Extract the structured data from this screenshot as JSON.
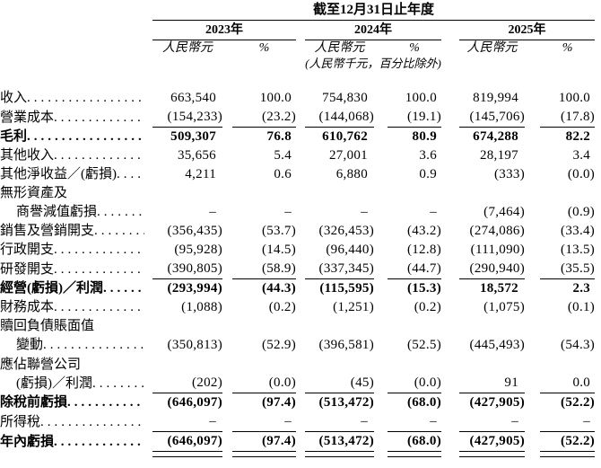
{
  "colors": {
    "text": "#000000",
    "rule": "#000000",
    "background": "#ffffff"
  },
  "header": {
    "period_title": "截至12月31日止年度",
    "years": [
      "2023年",
      "2024年",
      "2025年"
    ],
    "unit_label": "人民幣元",
    "percent_symbol": "%",
    "units_note": "(人民幣千元，百分比除外)"
  },
  "table": {
    "column_names": [
      "amount-2023",
      "percent-2023",
      "amount-2024",
      "percent-2024",
      "amount-2025",
      "percent-2025"
    ],
    "rows": [
      {
        "label": "收入",
        "bold": false,
        "values": [
          "663,540",
          "100.0",
          "754,830",
          "100.0",
          "819,994",
          "100.0"
        ]
      },
      {
        "label": "營業成本",
        "bold": false,
        "rule_below": true,
        "values": [
          "(154,233)",
          "(23.2)",
          "(144,068)",
          "(19.1)",
          "(145,706)",
          "(17.8)"
        ]
      },
      {
        "label": "毛利",
        "bold": true,
        "values": [
          "509,307",
          "76.8",
          "610,762",
          "80.9",
          "674,288",
          "82.2"
        ]
      },
      {
        "label": "其他收入",
        "bold": false,
        "values": [
          "35,656",
          "5.4",
          "27,001",
          "3.6",
          "28,197",
          "3.4"
        ]
      },
      {
        "label": "其他淨收益／(虧損)",
        "bold": false,
        "values": [
          "4,211",
          "0.6",
          "6,880",
          "0.9",
          "(333)",
          "(0.0)"
        ]
      },
      {
        "label": "無形資產及",
        "label2": "商譽減值虧損",
        "bold": false,
        "values": [
          "–",
          "–",
          "–",
          "–",
          "(7,464)",
          "(0.9)"
        ]
      },
      {
        "label": "銷售及營銷開支",
        "bold": false,
        "values": [
          "(356,435)",
          "(53.7)",
          "(326,453)",
          "(43.2)",
          "(274,086)",
          "(33.4)"
        ]
      },
      {
        "label": "行政開支",
        "bold": false,
        "values": [
          "(95,928)",
          "(14.5)",
          "(96,440)",
          "(12.8)",
          "(111,090)",
          "(13.5)"
        ]
      },
      {
        "label": "研發開支",
        "bold": false,
        "rule_below": true,
        "values": [
          "(390,805)",
          "(58.9)",
          "(337,345)",
          "(44.7)",
          "(290,940)",
          "(35.5)"
        ]
      },
      {
        "label": "經營(虧損)／利潤",
        "bold": true,
        "values": [
          "(293,994)",
          "(44.3)",
          "(115,595)",
          "(15.3)",
          "18,572",
          "2.3"
        ]
      },
      {
        "label": "財務成本",
        "bold": false,
        "values": [
          "(1,088)",
          "(0.2)",
          "(1,251)",
          "(0.2)",
          "(1,075)",
          "(0.1)"
        ]
      },
      {
        "label": "贖回負債賬面值",
        "label2": "變動",
        "bold": false,
        "values": [
          "(350,813)",
          "(52.9)",
          "(396,581)",
          "(52.5)",
          "(445,493)",
          "(54.3)"
        ]
      },
      {
        "label": "應佔聯營公司",
        "label2": "(虧損)／利潤",
        "bold": false,
        "rule_below": true,
        "values": [
          "(202)",
          "(0.0)",
          "(45)",
          "(0.0)",
          "91",
          "0.0"
        ]
      },
      {
        "label": "除稅前虧損",
        "bold": true,
        "values": [
          "(646,097)",
          "(97.4)",
          "(513,472)",
          "(68.0)",
          "(427,905)",
          "(52.2)"
        ]
      },
      {
        "label": "所得稅",
        "bold": false,
        "rule_below": true,
        "values": [
          "–",
          "–",
          "–",
          "–",
          "–",
          "–"
        ]
      },
      {
        "label": "年內虧損",
        "bold": true,
        "double_rule_below": true,
        "values": [
          "(646,097)",
          "(97.4)",
          "(513,472)",
          "(68.0)",
          "(427,905)",
          "(52.2)"
        ]
      }
    ]
  }
}
